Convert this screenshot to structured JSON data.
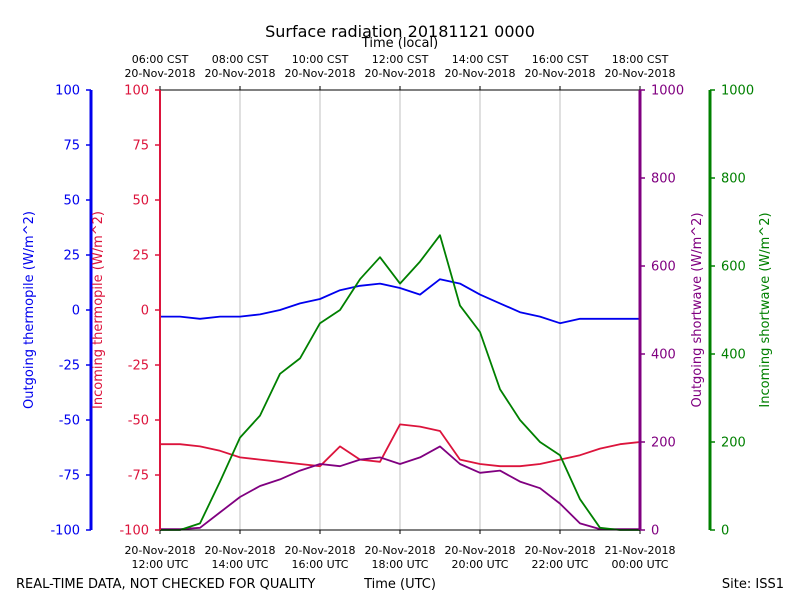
{
  "chart_data": {
    "type": "line",
    "title": "Surface radiation 20181121 0000",
    "top_xlabel": "Time (local)",
    "xlabel": "Time (UTC)",
    "footer_left": "REAL-TIME DATA, NOT CHECKED FOR QUALITY",
    "footer_right": "Site: ISS1",
    "xlim_hours_utc": [
      12,
      24
    ],
    "grid": "vertical",
    "bottom_ticks": [
      {
        "hour": 12,
        "date": "20-Nov-2018",
        "time": "12:00 UTC"
      },
      {
        "hour": 14,
        "date": "20-Nov-2018",
        "time": "14:00 UTC"
      },
      {
        "hour": 16,
        "date": "20-Nov-2018",
        "time": "16:00 UTC"
      },
      {
        "hour": 18,
        "date": "20-Nov-2018",
        "time": "18:00 UTC"
      },
      {
        "hour": 20,
        "date": "20-Nov-2018",
        "time": "20:00 UTC"
      },
      {
        "hour": 22,
        "date": "20-Nov-2018",
        "time": "22:00 UTC"
      },
      {
        "hour": 24,
        "date": "21-Nov-2018",
        "time": "00:00 UTC"
      }
    ],
    "top_ticks": [
      {
        "hour": 12,
        "time": "06:00 CST",
        "date": "20-Nov-2018"
      },
      {
        "hour": 14,
        "time": "08:00 CST",
        "date": "20-Nov-2018"
      },
      {
        "hour": 16,
        "time": "10:00 CST",
        "date": "20-Nov-2018"
      },
      {
        "hour": 18,
        "time": "12:00 CST",
        "date": "20-Nov-2018"
      },
      {
        "hour": 20,
        "time": "14:00 CST",
        "date": "20-Nov-2018"
      },
      {
        "hour": 22,
        "time": "16:00 CST",
        "date": "20-Nov-2018"
      },
      {
        "hour": 24,
        "time": "18:00 CST",
        "date": "20-Nov-2018"
      }
    ],
    "axes": [
      {
        "id": "out_thermo",
        "label": "Outgoing thermopile (W/m^2)",
        "color": "#0000ee",
        "ylim": [
          -100,
          100
        ],
        "ticks": [
          -100,
          -75,
          -50,
          -25,
          0,
          25,
          50,
          75,
          100
        ]
      },
      {
        "id": "in_thermo",
        "label": "Incoming thermopile (W/m^2)",
        "color": "#dc143c",
        "ylim": [
          -100,
          100
        ],
        "ticks": [
          -100,
          -75,
          -50,
          -25,
          0,
          25,
          50,
          75,
          100
        ]
      },
      {
        "id": "out_sw",
        "label": "Outgoing shortwave (W/m^2)",
        "color": "#800080",
        "ylim": [
          0,
          1000
        ],
        "ticks": [
          0,
          200,
          400,
          600,
          800,
          1000
        ]
      },
      {
        "id": "in_sw",
        "label": "Incoming shortwave (W/m^2)",
        "color": "#008000",
        "ylim": [
          0,
          1000
        ],
        "ticks": [
          0,
          200,
          400,
          600,
          800,
          1000
        ]
      }
    ],
    "series": [
      {
        "name": "Outgoing thermopile",
        "axis": "out_thermo",
        "color": "#0000ee",
        "x": [
          12,
          12.5,
          13,
          13.5,
          14,
          14.5,
          15,
          15.5,
          16,
          16.5,
          17,
          17.5,
          18,
          18.5,
          19,
          19.5,
          20,
          20.5,
          21,
          21.5,
          22,
          22.5,
          23,
          23.5,
          24
        ],
        "values": [
          -3,
          -3,
          -4,
          -3,
          -3,
          -2,
          0,
          3,
          5,
          9,
          11,
          12,
          10,
          7,
          14,
          12,
          7,
          3,
          -1,
          -3,
          -6,
          -4,
          -4,
          -4,
          -4
        ]
      },
      {
        "name": "Incoming thermopile",
        "axis": "in_thermo",
        "color": "#dc143c",
        "x": [
          12,
          12.5,
          13,
          13.5,
          14,
          14.5,
          15,
          15.5,
          16,
          16.5,
          17,
          17.5,
          18,
          18.5,
          19,
          19.5,
          20,
          20.5,
          21,
          21.5,
          22,
          22.5,
          23,
          23.5,
          24
        ],
        "values": [
          -61,
          -61,
          -62,
          -64,
          -67,
          -68,
          -69,
          -70,
          -71,
          -62,
          -68,
          -69,
          -52,
          -53,
          -55,
          -68,
          -70,
          -71,
          -71,
          -70,
          -68,
          -66,
          -63,
          -61,
          -60
        ]
      },
      {
        "name": "Outgoing shortwave",
        "axis": "out_sw",
        "color": "#800080",
        "x": [
          12,
          12.5,
          13,
          13.5,
          14,
          14.5,
          15,
          15.5,
          16,
          16.5,
          17,
          17.5,
          18,
          18.5,
          19,
          19.5,
          20,
          20.5,
          21,
          21.5,
          22,
          22.5,
          23,
          23.5,
          24
        ],
        "values": [
          2,
          2,
          5,
          40,
          75,
          100,
          115,
          135,
          150,
          145,
          160,
          165,
          150,
          165,
          190,
          150,
          130,
          135,
          110,
          95,
          60,
          15,
          2,
          2,
          2
        ]
      },
      {
        "name": "Incoming shortwave",
        "axis": "in_sw",
        "color": "#008000",
        "x": [
          12,
          12.5,
          13,
          13.5,
          14,
          14.5,
          15,
          15.5,
          16,
          16.5,
          17,
          17.5,
          18,
          18.5,
          19,
          19.5,
          20,
          20.5,
          21,
          21.5,
          22,
          22.5,
          23,
          23.5,
          24
        ],
        "values": [
          0,
          0,
          15,
          110,
          210,
          260,
          355,
          390,
          470,
          500,
          570,
          620,
          560,
          610,
          670,
          510,
          450,
          320,
          250,
          200,
          170,
          70,
          5,
          0,
          0
        ]
      }
    ]
  }
}
